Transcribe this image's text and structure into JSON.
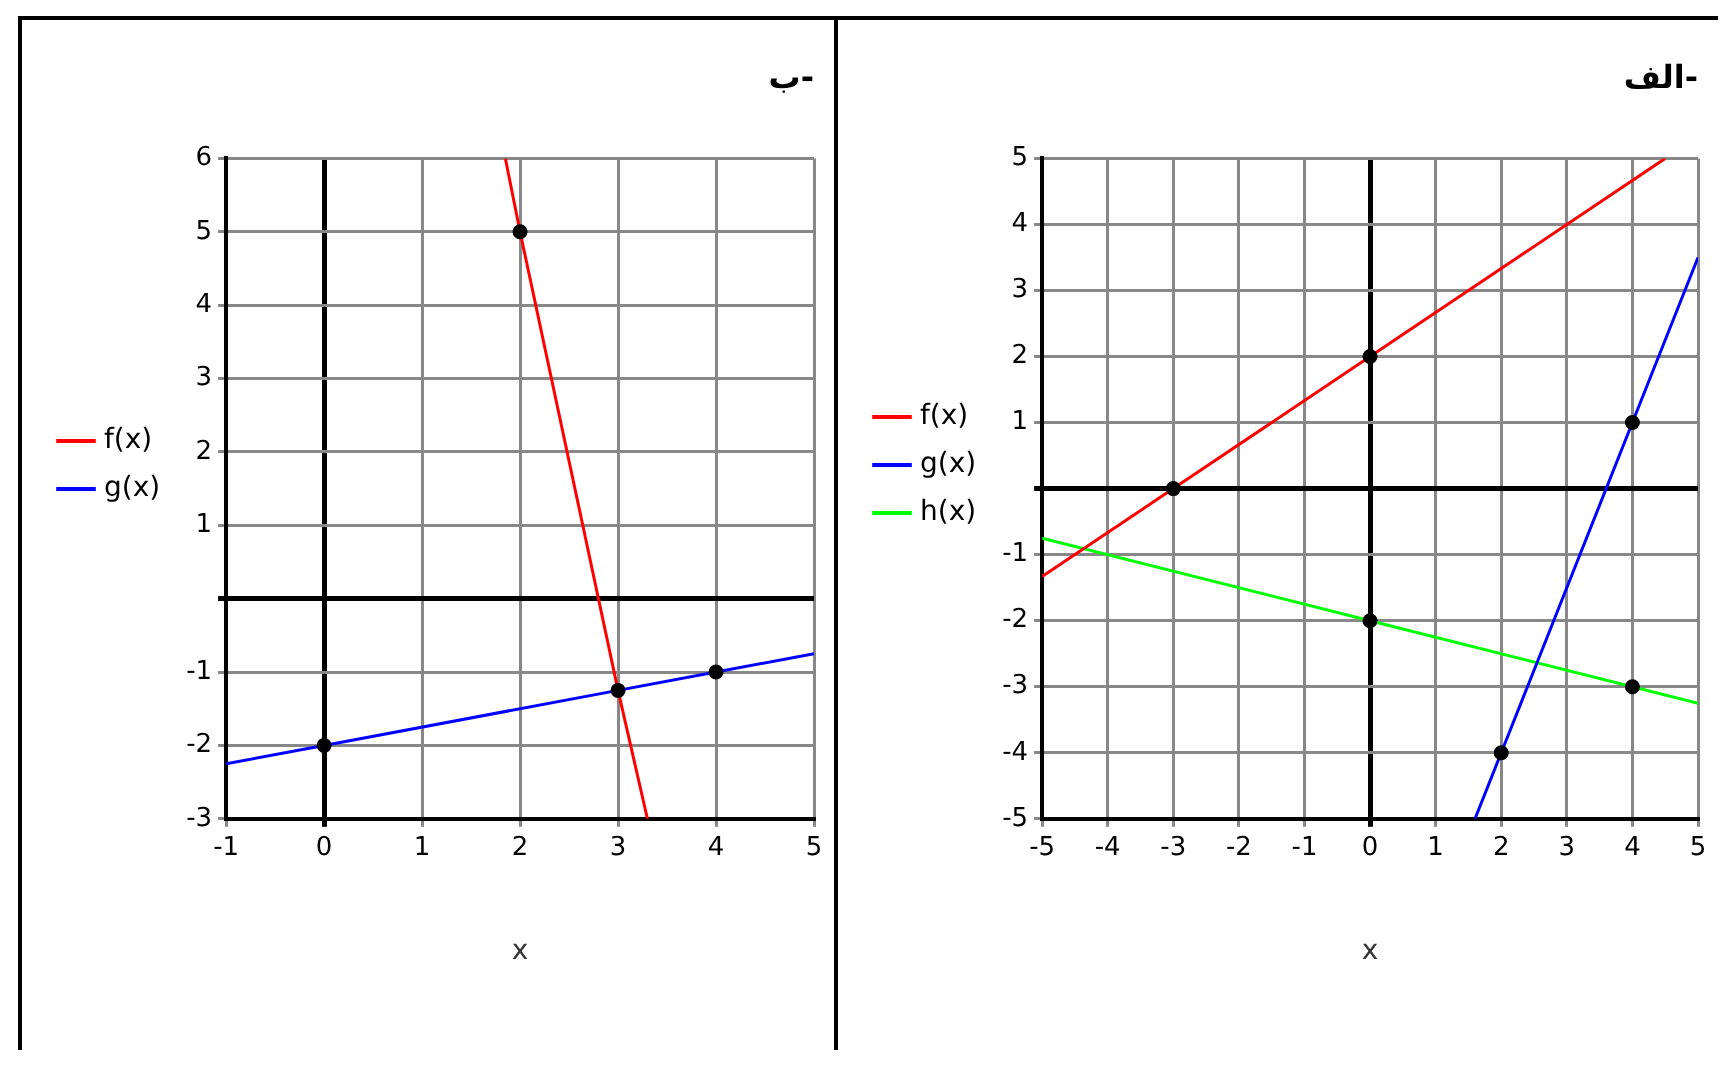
{
  "chart_data": [
    {
      "type": "line",
      "title": "الف-",
      "xlabel": "x",
      "xlim": [
        -5,
        5
      ],
      "ylim": [
        -5,
        5
      ],
      "xticks": [
        -5,
        -4,
        -3,
        -2,
        -1,
        0,
        1,
        2,
        3,
        4,
        5
      ],
      "yticks": [
        -5,
        -4,
        -3,
        -2,
        -1,
        {
          "value": 0,
          "label": null
        },
        1,
        2,
        3,
        4,
        5
      ],
      "grid": true,
      "legend": "left",
      "marker": "none",
      "series": [
        {
          "name": "f(x)",
          "color": "#ff0000",
          "x": [
            -5,
            -3,
            0,
            4.5
          ],
          "values": [
            -1.33,
            0,
            2,
            5
          ]
        },
        {
          "name": "g(x)",
          "color": "#0000ff",
          "x": [
            1.6,
            2,
            4,
            5
          ],
          "values": [
            -5,
            -4,
            1,
            3.5
          ]
        },
        {
          "name": "h(x)",
          "color": "#00ff00",
          "x": [
            -5,
            0,
            4,
            5
          ],
          "values": [
            -0.75,
            -2,
            -3,
            -3.25
          ]
        },
        {
          "type": "scatter",
          "marker": "circle",
          "color": "#000000",
          "x": [
            -3,
            0,
            2,
            4,
            0,
            4
          ],
          "values": [
            0,
            2,
            -4,
            1,
            -2,
            -3
          ]
        }
      ]
    },
    {
      "type": "line",
      "title": "ب-",
      "xlabel": "x",
      "xlim": [
        -1,
        5
      ],
      "ylim": [
        -3,
        6
      ],
      "xticks": [
        -1,
        0,
        1,
        2,
        3,
        4,
        5
      ],
      "yticks": [
        -3,
        -2,
        -1,
        {
          "value": 0,
          "label": null
        },
        1,
        2,
        3,
        4,
        5,
        6
      ],
      "grid": true,
      "legend": "left",
      "marker": "none",
      "series": [
        {
          "name": "f(x)",
          "color": "#ff0000",
          "x": [
            1.85,
            2,
            3,
            3.3
          ],
          "values": [
            6,
            5,
            -1.25,
            -3
          ]
        },
        {
          "name": "g(x)",
          "color": "#0000ff",
          "x": [
            -1,
            0,
            3,
            4,
            5
          ],
          "values": [
            -2.25,
            -2,
            -1.25,
            -1,
            -0.75
          ]
        },
        {
          "type": "scatter",
          "marker": "circle",
          "color": "#000000",
          "x": [
            2,
            0,
            3,
            4
          ],
          "values": [
            5,
            -2,
            -1.25,
            -1
          ]
        }
      ]
    }
  ]
}
